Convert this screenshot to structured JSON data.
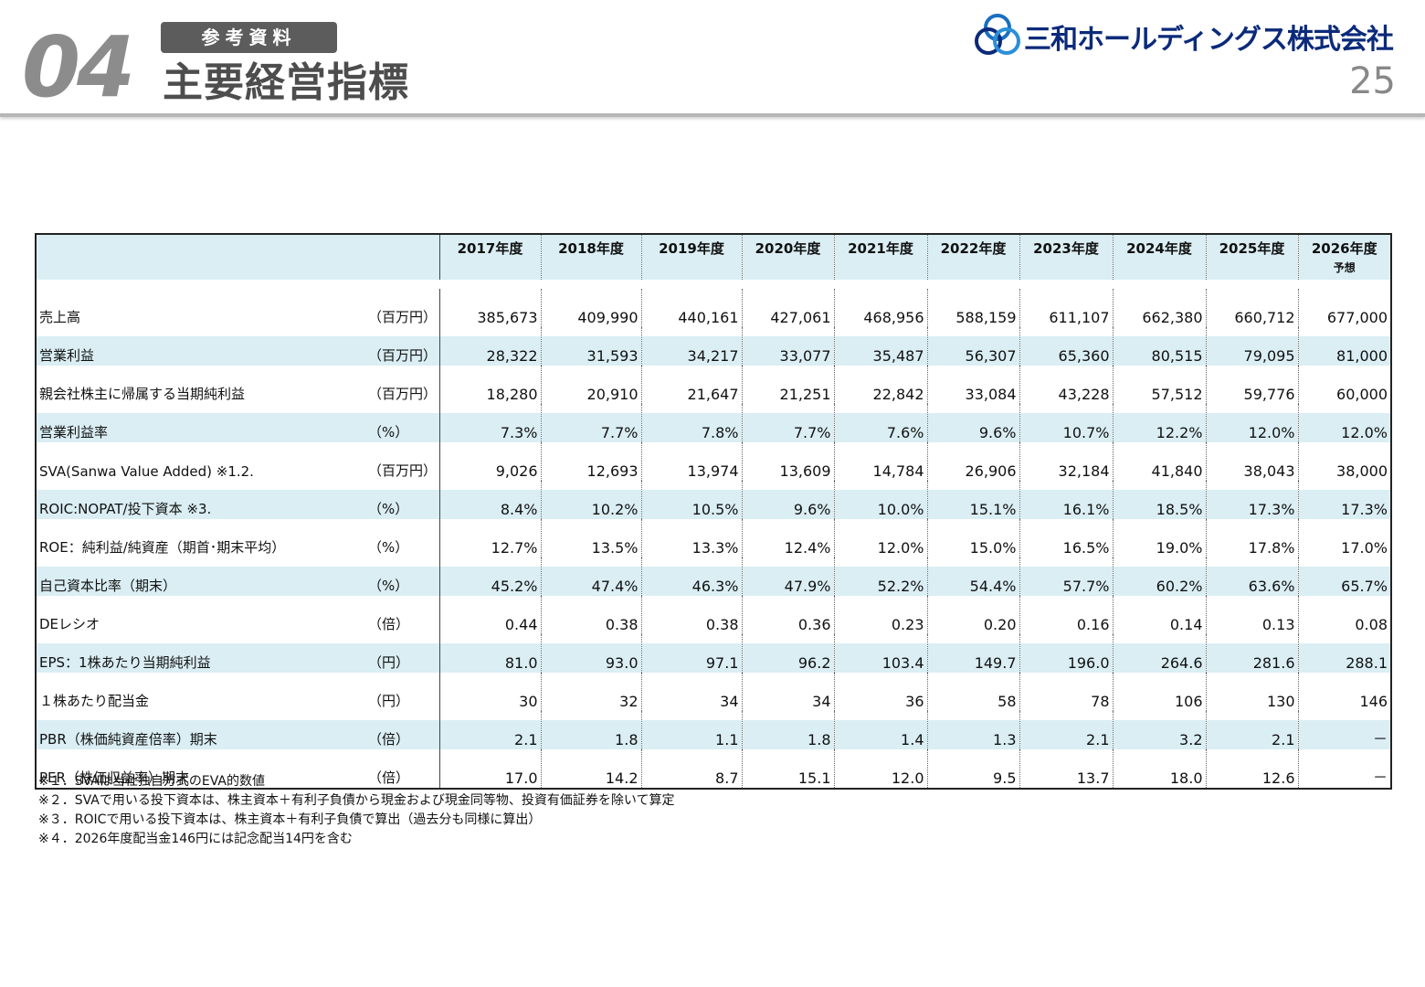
{
  "header": {
    "section_number": "04",
    "badge": "参考資料",
    "title": "主要経営指標",
    "company": "三和ホールディングス株式会社",
    "page_number": "25"
  },
  "table": {
    "years": [
      {
        "label": "2017年度",
        "sub": ""
      },
      {
        "label": "2018年度",
        "sub": ""
      },
      {
        "label": "2019年度",
        "sub": ""
      },
      {
        "label": "2020年度",
        "sub": ""
      },
      {
        "label": "2021年度",
        "sub": ""
      },
      {
        "label": "2022年度",
        "sub": ""
      },
      {
        "label": "2023年度",
        "sub": ""
      },
      {
        "label": "2024年度",
        "sub": ""
      },
      {
        "label": "2025年度",
        "sub": ""
      },
      {
        "label": "2026年度",
        "sub": "予想"
      }
    ],
    "rows": [
      {
        "label": "売上高",
        "unit": "（百万円）",
        "values": [
          "385,673",
          "409,990",
          "440,161",
          "427,061",
          "468,956",
          "588,159",
          "611,107",
          "662,380",
          "660,712",
          "677,000"
        ]
      },
      {
        "label": "営業利益",
        "unit": "（百万円）",
        "values": [
          "28,322",
          "31,593",
          "34,217",
          "33,077",
          "35,487",
          "56,307",
          "65,360",
          "80,515",
          "79,095",
          "81,000"
        ]
      },
      {
        "label": "親会社株主に帰属する当期純利益",
        "unit": "（百万円）",
        "values": [
          "18,280",
          "20,910",
          "21,647",
          "21,251",
          "22,842",
          "33,084",
          "43,228",
          "57,512",
          "59,776",
          "60,000"
        ]
      },
      {
        "label": "営業利益率",
        "unit": "（%）",
        "values": [
          "7.3%",
          "7.7%",
          "7.8%",
          "7.7%",
          "7.6%",
          "9.6%",
          "10.7%",
          "12.2%",
          "12.0%",
          "12.0%"
        ]
      },
      {
        "label": "SVA(Sanwa Value Added) ※1.2.",
        "unit": "（百万円）",
        "values": [
          "9,026",
          "12,693",
          "13,974",
          "13,609",
          "14,784",
          "26,906",
          "32,184",
          "41,840",
          "38,043",
          "38,000"
        ]
      },
      {
        "label": "ROIC:NOPAT/投下資本 ※3.",
        "unit": "（%）",
        "values": [
          "8.4%",
          "10.2%",
          "10.5%",
          "9.6%",
          "10.0%",
          "15.1%",
          "16.1%",
          "18.5%",
          "17.3%",
          "17.3%"
        ]
      },
      {
        "label": "ROE：純利益/純資産（期首･期末平均）",
        "unit": "（%）",
        "values": [
          "12.7%",
          "13.5%",
          "13.3%",
          "12.4%",
          "12.0%",
          "15.0%",
          "16.5%",
          "19.0%",
          "17.8%",
          "17.0%"
        ]
      },
      {
        "label": "自己資本比率（期末）",
        "unit": "（%）",
        "values": [
          "45.2%",
          "47.4%",
          "46.3%",
          "47.9%",
          "52.2%",
          "54.4%",
          "57.7%",
          "60.2%",
          "63.6%",
          "65.7%"
        ]
      },
      {
        "label": "DEレシオ",
        "unit": "（倍）",
        "values": [
          "0.44",
          "0.38",
          "0.38",
          "0.36",
          "0.23",
          "0.20",
          "0.16",
          "0.14",
          "0.13",
          "0.08"
        ]
      },
      {
        "label": "EPS：1株あたり当期純利益",
        "unit": "（円）",
        "values": [
          "81.0",
          "93.0",
          "97.1",
          "96.2",
          "103.4",
          "149.7",
          "196.0",
          "264.6",
          "281.6",
          "288.1"
        ]
      },
      {
        "label": "１株あたり配当金",
        "unit": "（円）",
        "values": [
          "30",
          "32",
          "34",
          "34",
          "36",
          "58",
          "78",
          "106",
          "130",
          "146"
        ]
      },
      {
        "label": "PBR（株価純資産倍率）期末",
        "unit": "（倍）",
        "values": [
          "2.1",
          "1.8",
          "1.1",
          "1.8",
          "1.4",
          "1.3",
          "2.1",
          "3.2",
          "2.1",
          "－"
        ]
      },
      {
        "label": "PER（株価収益率）期末",
        "unit": "（倍）",
        "values": [
          "17.0",
          "14.2",
          "8.7",
          "15.1",
          "12.0",
          "9.5",
          "13.7",
          "18.0",
          "12.6",
          "－"
        ]
      }
    ]
  },
  "notes": [
    "※１．SVAは当社独自方式のEVA的数値",
    "※２．SVAで用いる投下資本は、株主資本＋有利子負債から現金および現金同等物、投資有価証券を除いて算定",
    "※３．ROICで用いる投下資本は、株主資本＋有利子負債で算出（過去分も同様に算出）",
    "※４．2026年度配当金146円には記念配当14円を含む"
  ]
}
